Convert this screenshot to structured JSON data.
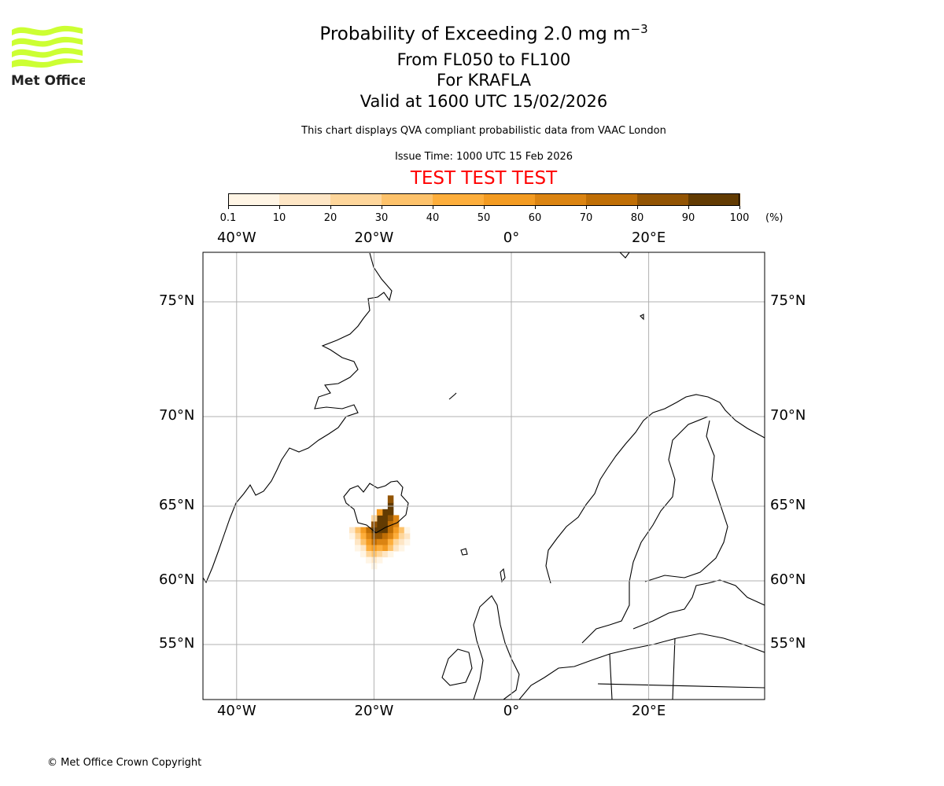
{
  "header": {
    "title": "Probability of Exceeding 2.0 mg m",
    "title_exponent": "−3",
    "level_range": "From FL050 to FL100",
    "volcano": "For KRAFLA",
    "valid_time": "Valid at 1600 UTC 15/02/2026",
    "note": "This chart displays QVA compliant probabilistic data from VAAC London",
    "issue_time": "Issue Time: 1000 UTC 15 Feb 2026",
    "test_banner": "TEST TEST TEST",
    "logo_text": "Met Office"
  },
  "footer": {
    "copyright": "© Met Office Crown Copyright"
  },
  "chart_data": {
    "type": "heatmap",
    "title": "Probability of Exceeding 2.0 mg m−3",
    "colorbar": {
      "ticks": [
        "0.1",
        "10",
        "20",
        "30",
        "40",
        "50",
        "60",
        "70",
        "80",
        "90",
        "100"
      ],
      "unit": "(%)",
      "colors": [
        "#fff5e5",
        "#fee6c5",
        "#fed69b",
        "#fdc26b",
        "#fdae3c",
        "#f39b22",
        "#db8412",
        "#bf6e05",
        "#925403",
        "#623b02"
      ]
    },
    "lon_ticks": [
      {
        "value": -40,
        "label": "40°W"
      },
      {
        "value": -20,
        "label": "20°W"
      },
      {
        "value": 0,
        "label": "0°"
      },
      {
        "value": 20,
        "label": "20°E"
      }
    ],
    "lat_ticks": [
      {
        "value": 75,
        "label": "75°N"
      },
      {
        "value": 70,
        "label": "70°N"
      },
      {
        "value": 65,
        "label": "65°N"
      },
      {
        "value": 60,
        "label": "60°N"
      },
      {
        "value": 55,
        "label": "55°N"
      }
    ],
    "lon_range": [
      -45,
      36
    ],
    "lat_range": [
      52,
      77
    ],
    "grid": true,
    "cell_size_deg": [
      0.8,
      0.4
    ],
    "cells": [
      [
        -17.6,
        65.0,
        95
      ],
      [
        -17.6,
        64.6,
        95
      ],
      [
        -18.4,
        64.6,
        95
      ],
      [
        -18.4,
        64.2,
        95
      ],
      [
        -19.2,
        64.2,
        95
      ],
      [
        -18.4,
        63.8,
        95
      ],
      [
        -19.2,
        63.8,
        95
      ],
      [
        -19.2,
        63.4,
        95
      ],
      [
        -20.0,
        63.4,
        95
      ],
      [
        -18.4,
        63.4,
        95
      ],
      [
        -17.6,
        65.4,
        85
      ],
      [
        -17.6,
        64.2,
        85
      ],
      [
        -20.0,
        63.8,
        85
      ],
      [
        -20.0,
        63.0,
        85
      ],
      [
        -19.2,
        63.0,
        85
      ],
      [
        -17.6,
        63.8,
        75
      ],
      [
        -17.6,
        63.4,
        75
      ],
      [
        -18.4,
        63.0,
        75
      ],
      [
        -20.8,
        63.4,
        75
      ],
      [
        -20.0,
        62.6,
        75
      ],
      [
        -18.4,
        62.6,
        65
      ],
      [
        -19.2,
        62.6,
        65
      ],
      [
        -20.8,
        63.0,
        65
      ],
      [
        -17.6,
        63.0,
        65
      ],
      [
        -16.8,
        64.2,
        65
      ],
      [
        -16.8,
        63.8,
        65
      ],
      [
        -21.6,
        63.4,
        55
      ],
      [
        -20.8,
        62.6,
        55
      ],
      [
        -20.0,
        62.2,
        55
      ],
      [
        -18.4,
        62.2,
        55
      ],
      [
        -16.8,
        63.4,
        55
      ],
      [
        -19.2,
        64.6,
        55
      ],
      [
        -21.6,
        63.0,
        45
      ],
      [
        -19.2,
        62.2,
        45
      ],
      [
        -20.8,
        62.2,
        45
      ],
      [
        -17.6,
        62.6,
        45
      ],
      [
        -16.8,
        63.0,
        45
      ],
      [
        -22.4,
        63.4,
        35
      ],
      [
        -20.0,
        61.8,
        35
      ],
      [
        -17.6,
        62.2,
        35
      ],
      [
        -16.0,
        63.4,
        35
      ],
      [
        -21.6,
        62.6,
        35
      ],
      [
        -22.4,
        63.0,
        25
      ],
      [
        -20.8,
        61.8,
        25
      ],
      [
        -19.2,
        61.8,
        25
      ],
      [
        -16.0,
        63.0,
        25
      ],
      [
        -16.8,
        62.6,
        25
      ],
      [
        -20.0,
        64.2,
        25
      ],
      [
        -23.2,
        63.4,
        15
      ],
      [
        -22.4,
        62.6,
        15
      ],
      [
        -21.6,
        62.2,
        15
      ],
      [
        -20.0,
        61.4,
        15
      ],
      [
        -18.4,
        61.8,
        15
      ],
      [
        -16.0,
        62.6,
        15
      ],
      [
        -15.2,
        63.0,
        15
      ],
      [
        -16.8,
        62.2,
        15
      ],
      [
        -23.2,
        63.0,
        5
      ],
      [
        -22.4,
        62.2,
        5
      ],
      [
        -21.6,
        61.8,
        5
      ],
      [
        -20.8,
        61.4,
        5
      ],
      [
        -19.2,
        61.4,
        5
      ],
      [
        -17.6,
        61.8,
        5
      ],
      [
        -15.2,
        62.6,
        5
      ],
      [
        -16.0,
        62.2,
        5
      ],
      [
        -15.2,
        63.4,
        5
      ],
      [
        -20.0,
        61.0,
        5
      ]
    ]
  }
}
